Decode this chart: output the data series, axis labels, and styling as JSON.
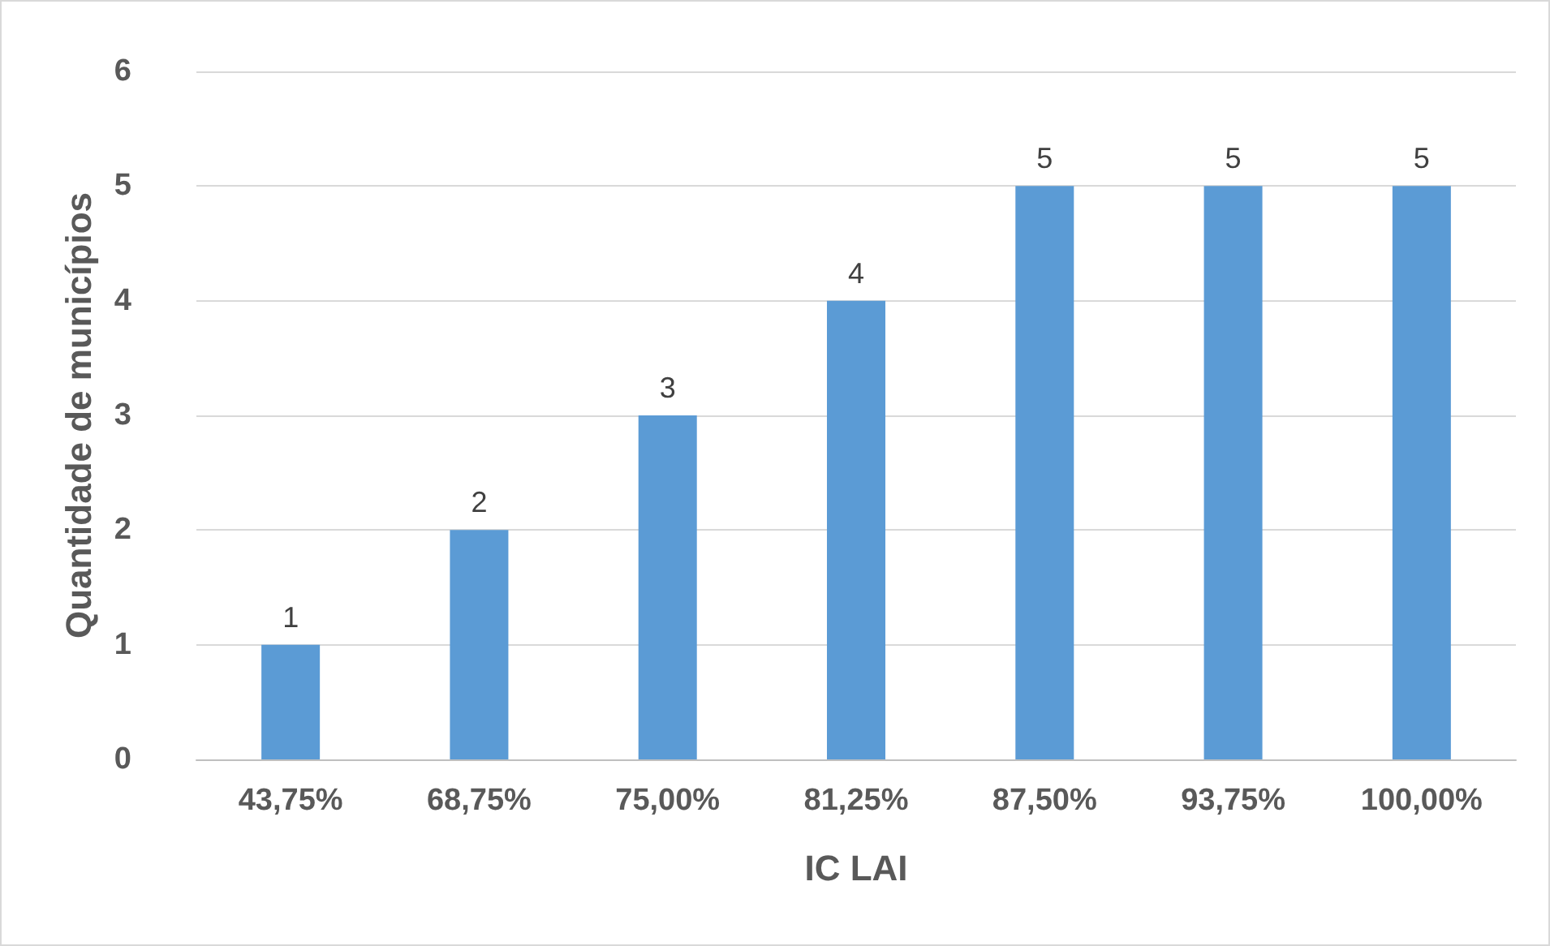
{
  "chart_data": {
    "type": "bar",
    "xlabel": "IC LAI",
    "ylabel": "Quantidade de municípios",
    "categories": [
      "43,75%",
      "68,75%",
      "75,00%",
      "81,25%",
      "87,50%",
      "93,75%",
      "100,00%"
    ],
    "values": [
      1,
      2,
      3,
      4,
      5,
      5,
      5
    ],
    "color": "#5b9bd5",
    "ylim": [
      0,
      6
    ],
    "yticks": [
      0,
      1,
      2,
      3,
      4,
      5,
      6
    ],
    "grid": "y",
    "data_labels": true
  }
}
